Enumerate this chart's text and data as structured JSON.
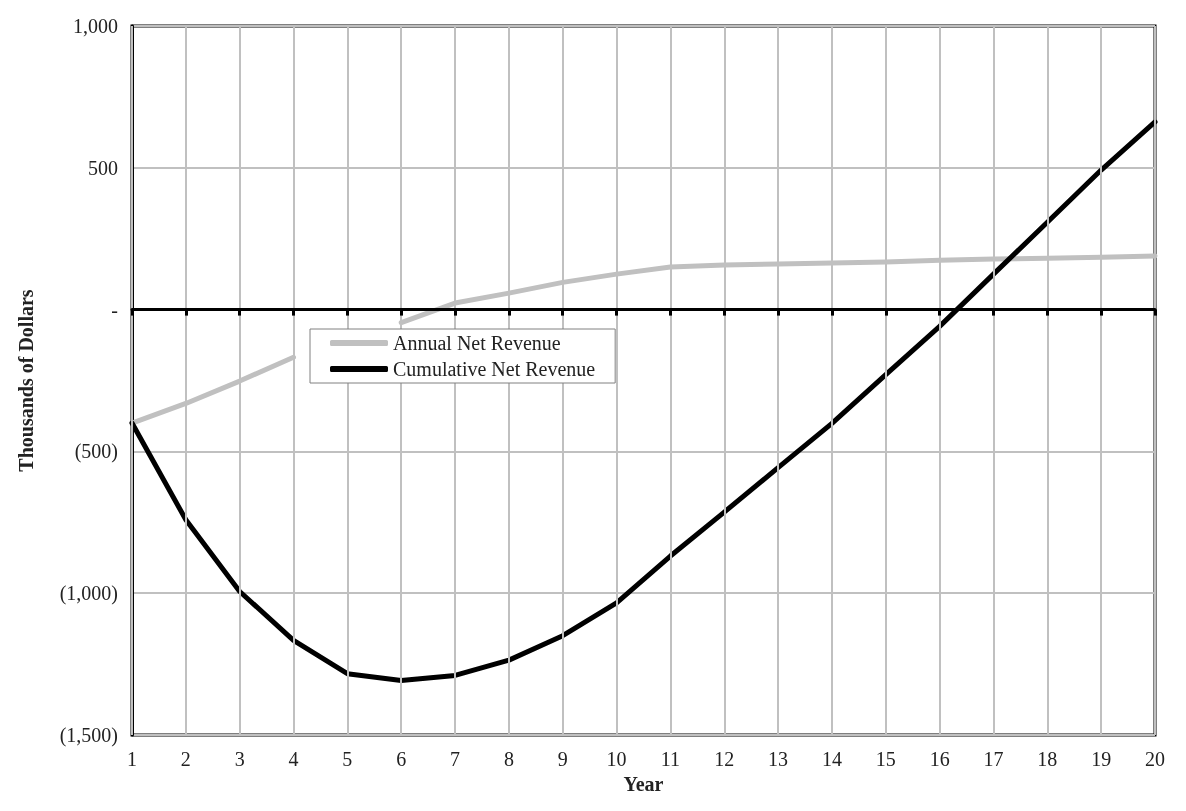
{
  "chart_data": {
    "type": "line",
    "xlabel": "Year",
    "ylabel": "Thousands of Dollars",
    "x": [
      1,
      2,
      3,
      4,
      5,
      6,
      7,
      8,
      9,
      10,
      11,
      12,
      13,
      14,
      15,
      16,
      17,
      18,
      19,
      20
    ],
    "series": [
      {
        "name": "Annual Net Revenue",
        "color": "#c0c0c0",
        "values": [
          -400,
          -331,
          -252,
          -168,
          null,
          -46,
          23,
          58,
          96,
          125,
          150,
          157,
          161,
          164,
          168,
          174,
          178,
          181,
          185,
          189
        ]
      },
      {
        "name": "Cumulative Net Revenue",
        "color": "#000000",
        "values": [
          -400,
          -741,
          -994,
          -1166,
          -1284,
          -1308,
          -1290,
          -1236,
          -1150,
          -1034,
          -869,
          -714,
          -557,
          -401,
          -229,
          -59,
          125,
          308,
          492,
          662
        ]
      }
    ],
    "xlim": [
      1,
      20
    ],
    "xticks": [
      1,
      2,
      3,
      4,
      5,
      6,
      7,
      8,
      9,
      10,
      11,
      12,
      13,
      14,
      15,
      16,
      17,
      18,
      19,
      20
    ],
    "ylim": [
      -1500,
      1000
    ],
    "yticks": [
      {
        "value": -1500,
        "label": "(1,500)"
      },
      {
        "value": -1000,
        "label": "(1,000)"
      },
      {
        "value": -500,
        "label": "(500)"
      },
      {
        "value": 0,
        "label": "-"
      },
      500,
      {
        "value": 1000,
        "label": "1,000"
      }
    ],
    "grid": true,
    "legend": "top left",
    "marker": "none",
    "line_style": "solid"
  }
}
